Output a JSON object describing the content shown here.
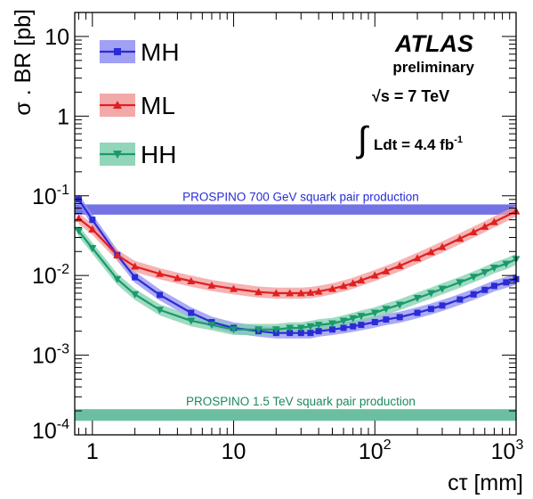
{
  "chart_data": {
    "type": "line",
    "xlabel": "cτ [mm]",
    "ylabel": "σ . BR [pb]",
    "x_scale": "log",
    "y_scale": "log",
    "xlim": [
      0.75,
      1000
    ],
    "ylim": [
      0.0001,
      20
    ],
    "x_ticks": [
      {
        "value": 1,
        "base": "1",
        "exp": ""
      },
      {
        "value": 10,
        "base": "10",
        "exp": ""
      },
      {
        "value": 100,
        "base": "10",
        "exp": "2"
      },
      {
        "value": 1000,
        "base": "10",
        "exp": "3"
      }
    ],
    "y_ticks": [
      {
        "value": 0.0001,
        "base": "10",
        "exp": "-4"
      },
      {
        "value": 0.001,
        "base": "10",
        "exp": "-3"
      },
      {
        "value": 0.01,
        "base": "10",
        "exp": "-2"
      },
      {
        "value": 0.1,
        "base": "10",
        "exp": "-1"
      },
      {
        "value": 1,
        "base": "1",
        "exp": ""
      },
      {
        "value": 10,
        "base": "10",
        "exp": ""
      }
    ],
    "experiment": "ATLAS",
    "status": "preliminary",
    "energy": "√s = 7 TeV",
    "lumi_text": "Ldt = 4.4 fb",
    "lumi_exp": "-1",
    "series": [
      {
        "name": "MH",
        "color": "#2b2bd6",
        "band_color": "#8f8ff2",
        "marker": "square",
        "x": [
          0.8,
          1.0,
          1.5,
          2,
          3,
          5,
          7,
          10,
          15,
          20,
          25,
          30,
          35,
          40,
          50,
          60,
          70,
          80,
          100,
          120,
          150,
          200,
          250,
          300,
          400,
          500,
          600,
          700,
          850,
          1000
        ],
        "y": [
          0.09,
          0.05,
          0.018,
          0.0095,
          0.0057,
          0.0034,
          0.0026,
          0.0022,
          0.002,
          0.0019,
          0.0019,
          0.0019,
          0.0019,
          0.002,
          0.0021,
          0.0022,
          0.0023,
          0.0024,
          0.0026,
          0.0028,
          0.003,
          0.0034,
          0.0038,
          0.0042,
          0.005,
          0.0058,
          0.0066,
          0.0074,
          0.0082,
          0.009
        ],
        "band_halfwidth": 0.07
      },
      {
        "name": "ML",
        "color": "#e02020",
        "band_color": "#f29a9a",
        "marker": "triangle-up",
        "x": [
          0.8,
          1.0,
          1.5,
          2,
          3,
          4,
          5,
          7,
          10,
          15,
          20,
          25,
          30,
          35,
          40,
          50,
          60,
          70,
          80,
          100,
          120,
          150,
          200,
          250,
          300,
          400,
          500,
          600,
          700,
          1000
        ],
        "y": [
          0.052,
          0.038,
          0.018,
          0.013,
          0.0105,
          0.0093,
          0.0085,
          0.0075,
          0.0068,
          0.0062,
          0.006,
          0.006,
          0.006,
          0.0061,
          0.0063,
          0.0068,
          0.0074,
          0.008,
          0.0087,
          0.01,
          0.0113,
          0.0132,
          0.0165,
          0.0197,
          0.0228,
          0.029,
          0.035,
          0.041,
          0.047,
          0.064
        ],
        "band_halfwidth": 0.07
      },
      {
        "name": "HH",
        "color": "#1a9a6a",
        "band_color": "#7fcfae",
        "marker": "triangle-down",
        "x": [
          0.8,
          1.0,
          1.5,
          2,
          3,
          5,
          7,
          10,
          15,
          20,
          25,
          30,
          35,
          40,
          50,
          60,
          70,
          80,
          100,
          120,
          150,
          200,
          250,
          300,
          400,
          500,
          600,
          700,
          850,
          1000
        ],
        "y": [
          0.036,
          0.022,
          0.009,
          0.0058,
          0.0037,
          0.0027,
          0.0024,
          0.0021,
          0.0021,
          0.0021,
          0.0022,
          0.0022,
          0.0023,
          0.0024,
          0.0025,
          0.0027,
          0.0029,
          0.0031,
          0.0034,
          0.0038,
          0.0043,
          0.0052,
          0.006,
          0.0068,
          0.0082,
          0.0096,
          0.011,
          0.0125,
          0.014,
          0.016
        ],
        "band_halfwidth": 0.07
      }
    ],
    "reference_bands": [
      {
        "label": "PROSPINO 700 GeV squark pair production",
        "y_low": 0.058,
        "y_high": 0.078,
        "color": "#4444dd",
        "text_color": "#2b2bd6"
      },
      {
        "label": "PROSPINO 1.5 TeV squark pair production",
        "y_low": 0.00015,
        "y_high": 0.00021,
        "color": "#3aaa80",
        "text_color": "#1a8a5a"
      }
    ]
  }
}
